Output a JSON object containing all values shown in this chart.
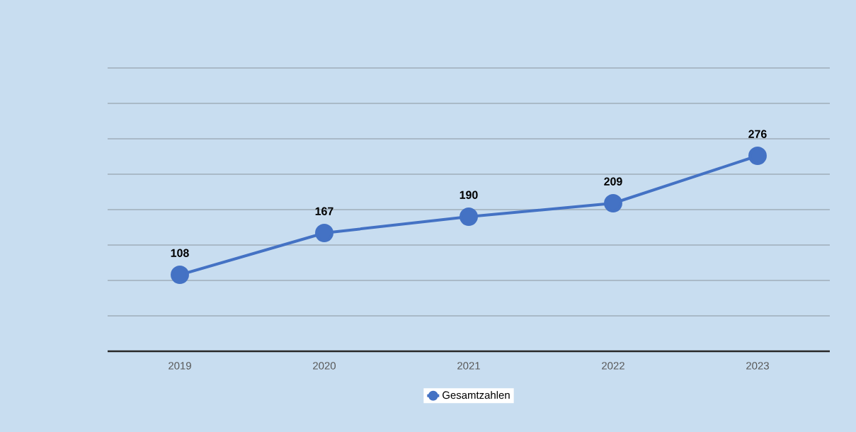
{
  "chart_data": {
    "type": "line",
    "categories": [
      "2019",
      "2020",
      "2021",
      "2022",
      "2023"
    ],
    "series": [
      {
        "name": "Gesamtzahlen",
        "color": "#4472c4",
        "values": [
          108,
          167,
          190,
          209,
          276
        ]
      }
    ],
    "ylim": [
      0,
      400
    ],
    "yticks": [
      {
        "value": 0,
        "label": null
      },
      {
        "value": 50,
        "label": null
      },
      {
        "value": 100,
        "label": null
      },
      {
        "value": 150,
        "label": null
      },
      {
        "value": 200,
        "label": null
      },
      {
        "value": 250,
        "label": null
      },
      {
        "value": 300,
        "label": null
      },
      {
        "value": 350,
        "label": null
      },
      {
        "value": 400,
        "label": null
      }
    ],
    "tick_labels": "x",
    "grid": "y",
    "legend": "bottom",
    "marker": "circle",
    "data_labels": true
  }
}
